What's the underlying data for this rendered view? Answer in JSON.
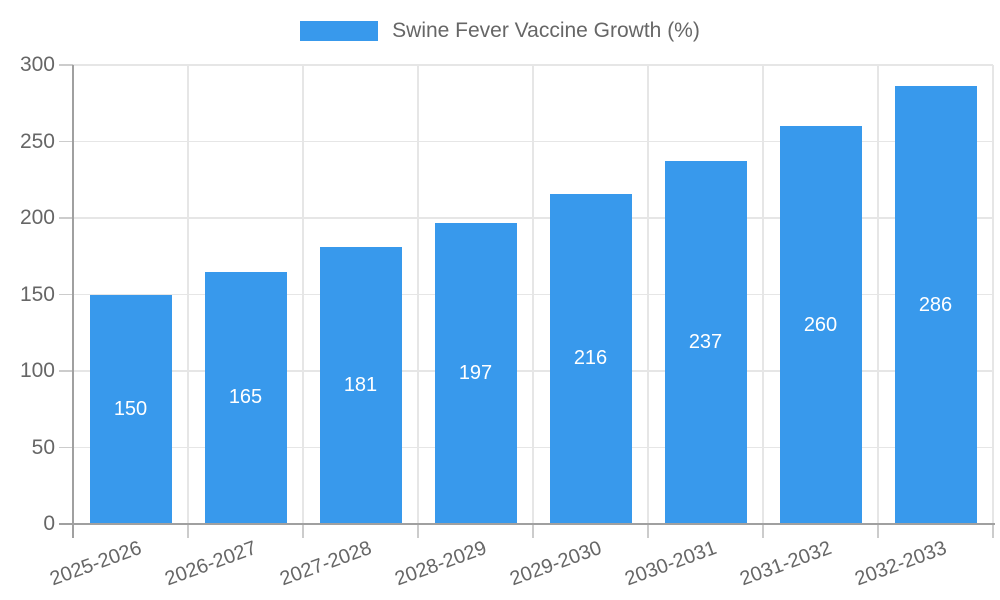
{
  "chart_data": {
    "type": "bar",
    "title": "Swine Fever Vaccine Growth (%)",
    "categories": [
      "2025-2026",
      "2026-2027",
      "2027-2028",
      "2028-2029",
      "2029-2030",
      "2030-2031",
      "2031-2032",
      "2032-2033"
    ],
    "values": [
      150,
      165,
      181,
      197,
      216,
      237,
      260,
      286
    ],
    "value_labels": [
      "150",
      "165",
      "181",
      "197",
      "216",
      "237",
      "260",
      "286"
    ],
    "xlabel": "",
    "ylabel": "",
    "ylim": [
      0,
      300
    ],
    "yticks": [
      0,
      50,
      100,
      150,
      200,
      250,
      300
    ],
    "ytick_labels": [
      "0",
      "50",
      "100",
      "150",
      "200",
      "250",
      "300"
    ],
    "grid": true,
    "legend_position": "top",
    "value_labels_position": "center-inside",
    "xtick_rotation_deg": -20,
    "colors": {
      "bar": "#3899ec",
      "value_label": "#ffffff",
      "tick_text": "#666666",
      "grid": "#e6e6e6",
      "tick_mark": "#cccccc",
      "axis": "#a0a0a0",
      "background": "#ffffff"
    }
  }
}
